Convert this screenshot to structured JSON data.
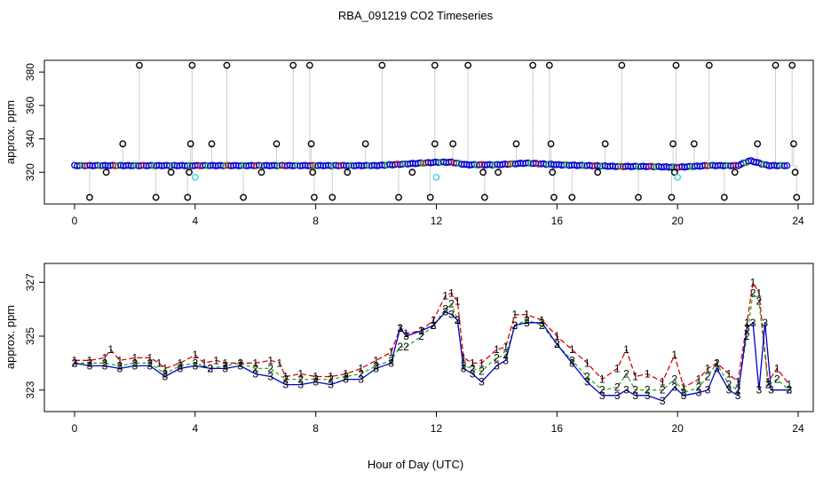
{
  "figure": {
    "title": "RBA_091219  CO2 Timeseries",
    "xlabel": "Hour of Day (UTC)"
  },
  "colors": {
    "axis": "#000000",
    "drop_line": "#a0a0a0",
    "outlier": "#000000",
    "flagged": "#40d0e0",
    "series_1": "#e00000",
    "series_2": "#20b020",
    "series_3": "#0000d0"
  },
  "chart_data": [
    {
      "type": "scatter",
      "panel": "top",
      "ylabel": "approx. ppm",
      "xlim": [
        -1,
        24.5
      ],
      "ylim": [
        301,
        387
      ],
      "x_ticks": [
        0,
        4,
        8,
        12,
        16,
        20,
        24
      ],
      "y_ticks": [
        320,
        340,
        360,
        380
      ],
      "baseline": [
        [
          0,
          324
        ],
        [
          1,
          324
        ],
        [
          2,
          324
        ],
        [
          3,
          324
        ],
        [
          4,
          324
        ],
        [
          5,
          324
        ],
        [
          6,
          324
        ],
        [
          7,
          324
        ],
        [
          8,
          324
        ],
        [
          9,
          324
        ],
        [
          10,
          324
        ],
        [
          11,
          325
        ],
        [
          12,
          326
        ],
        [
          12.5,
          326
        ],
        [
          13,
          324.5
        ],
        [
          14,
          324.5
        ],
        [
          15,
          325.5
        ],
        [
          16,
          324.5
        ],
        [
          17,
          324
        ],
        [
          18,
          323.5
        ],
        [
          19,
          323.5
        ],
        [
          20,
          323
        ],
        [
          21,
          324
        ],
        [
          22,
          324
        ],
        [
          22.4,
          327
        ],
        [
          23,
          324
        ],
        [
          23.7,
          324
        ]
      ],
      "outliers_high": [
        [
          2.15,
          384
        ],
        [
          3.9,
          384
        ],
        [
          5.05,
          384
        ],
        [
          7.25,
          384
        ],
        [
          7.8,
          384
        ],
        [
          10.2,
          384
        ],
        [
          11.95,
          384
        ],
        [
          13.05,
          384
        ],
        [
          15.2,
          384
        ],
        [
          15.75,
          384
        ],
        [
          18.15,
          384
        ],
        [
          19.95,
          384
        ],
        [
          21.05,
          384
        ],
        [
          23.25,
          384
        ],
        [
          23.8,
          384
        ]
      ],
      "outliers_mid": [
        [
          1.6,
          337
        ],
        [
          3.85,
          337
        ],
        [
          4.55,
          337
        ],
        [
          6.7,
          337
        ],
        [
          7.85,
          337
        ],
        [
          9.65,
          337
        ],
        [
          11.95,
          337
        ],
        [
          12.55,
          337
        ],
        [
          14.65,
          337
        ],
        [
          15.8,
          337
        ],
        [
          17.6,
          337
        ],
        [
          19.85,
          337
        ],
        [
          20.55,
          337
        ],
        [
          22.65,
          337
        ],
        [
          23.85,
          337
        ]
      ],
      "outliers_lowmid": [
        [
          1.05,
          320
        ],
        [
          3.2,
          320
        ],
        [
          3.8,
          320
        ],
        [
          6.2,
          320
        ],
        [
          7.9,
          320
        ],
        [
          9.05,
          320
        ],
        [
          11.2,
          320
        ],
        [
          13.55,
          320
        ],
        [
          14.05,
          320
        ],
        [
          15.85,
          320
        ],
        [
          17.35,
          320
        ],
        [
          19.9,
          320
        ],
        [
          21.9,
          320
        ],
        [
          23.9,
          320
        ]
      ],
      "outliers_low": [
        [
          0.5,
          305
        ],
        [
          2.7,
          305
        ],
        [
          3.75,
          305
        ],
        [
          5.6,
          305
        ],
        [
          7.95,
          305
        ],
        [
          8.55,
          305
        ],
        [
          10.75,
          305
        ],
        [
          11.8,
          305
        ],
        [
          13.6,
          305
        ],
        [
          15.9,
          305
        ],
        [
          16.5,
          305
        ],
        [
          18.7,
          305
        ],
        [
          19.8,
          305
        ],
        [
          21.55,
          305
        ],
        [
          23.95,
          305
        ]
      ],
      "flagged_points": [
        [
          4,
          317
        ],
        [
          12,
          317
        ],
        [
          20,
          317
        ]
      ]
    },
    {
      "type": "line",
      "panel": "bottom",
      "ylabel": "approx. ppm",
      "xlim": [
        -1,
        24.5
      ],
      "ylim": [
        322.2,
        327.7
      ],
      "x_ticks": [
        0,
        4,
        8,
        12,
        16,
        20,
        24
      ],
      "y_ticks": [
        323,
        325,
        327
      ],
      "series": [
        {
          "name": "1",
          "points": [
            [
              0,
              324.1
            ],
            [
              0.5,
              324.1
            ],
            [
              1,
              324.2
            ],
            [
              1.2,
              324.5
            ],
            [
              1.5,
              324.1
            ],
            [
              2,
              324.2
            ],
            [
              2.5,
              324.2
            ],
            [
              2.8,
              324.0
            ],
            [
              3,
              323.8
            ],
            [
              3.5,
              324.0
            ],
            [
              4,
              324.3
            ],
            [
              4.3,
              324.0
            ],
            [
              4.7,
              324.1
            ],
            [
              5,
              324.0
            ],
            [
              5.5,
              324.0
            ],
            [
              6,
              324.0
            ],
            [
              6.5,
              324.1
            ],
            [
              6.8,
              324.0
            ],
            [
              7,
              323.5
            ],
            [
              7.5,
              323.6
            ],
            [
              8,
              323.5
            ],
            [
              8.5,
              323.5
            ],
            [
              9,
              323.6
            ],
            [
              9.5,
              323.8
            ],
            [
              10,
              324.1
            ],
            [
              10.5,
              324.4
            ],
            [
              10.8,
              325.3
            ],
            [
              11,
              325.1
            ],
            [
              11.5,
              325.2
            ],
            [
              11.9,
              325.6
            ],
            [
              12.3,
              326.5
            ],
            [
              12.5,
              326.6
            ],
            [
              12.7,
              326.3
            ],
            [
              12.9,
              324.2
            ],
            [
              13.2,
              324.0
            ],
            [
              13.5,
              324.0
            ],
            [
              14,
              324.5
            ],
            [
              14.3,
              324.6
            ],
            [
              14.6,
              325.8
            ],
            [
              15,
              325.8
            ],
            [
              15.5,
              325.6
            ],
            [
              16,
              325.0
            ],
            [
              16.5,
              324.5
            ],
            [
              17,
              324.0
            ],
            [
              17.5,
              323.4
            ],
            [
              18,
              323.8
            ],
            [
              18.3,
              324.5
            ],
            [
              18.6,
              323.5
            ],
            [
              19,
              323.6
            ],
            [
              19.5,
              323.3
            ],
            [
              19.9,
              324.3
            ],
            [
              20.2,
              323.1
            ],
            [
              20.7,
              323.4
            ],
            [
              21,
              323.8
            ],
            [
              21.3,
              324.0
            ],
            [
              21.7,
              323.6
            ],
            [
              22,
              323.3
            ],
            [
              22.3,
              325.5
            ],
            [
              22.5,
              327.0
            ],
            [
              22.7,
              326.6
            ],
            [
              23,
              323.3
            ],
            [
              23.3,
              323.8
            ],
            [
              23.7,
              323.2
            ]
          ]
        },
        {
          "name": "2",
          "points": [
            [
              0,
              324.0
            ],
            [
              0.5,
              324.0
            ],
            [
              1,
              324.0
            ],
            [
              1.5,
              323.9
            ],
            [
              2,
              324.0
            ],
            [
              2.5,
              324.0
            ],
            [
              3,
              323.6
            ],
            [
              3.5,
              323.9
            ],
            [
              4,
              324.0
            ],
            [
              4.5,
              323.8
            ],
            [
              5,
              323.9
            ],
            [
              5.5,
              324.0
            ],
            [
              6,
              323.8
            ],
            [
              6.5,
              323.8
            ],
            [
              7,
              323.4
            ],
            [
              7.5,
              323.4
            ],
            [
              8,
              323.4
            ],
            [
              8.5,
              323.4
            ],
            [
              9,
              323.5
            ],
            [
              9.5,
              323.6
            ],
            [
              10,
              323.9
            ],
            [
              10.5,
              324.1
            ],
            [
              10.8,
              324.6
            ],
            [
              11,
              324.6
            ],
            [
              11.5,
              325.0
            ],
            [
              11.9,
              325.4
            ],
            [
              12.3,
              326.0
            ],
            [
              12.5,
              326.2
            ],
            [
              12.7,
              325.6
            ],
            [
              12.9,
              323.9
            ],
            [
              13.2,
              323.8
            ],
            [
              13.5,
              323.7
            ],
            [
              14,
              324.2
            ],
            [
              14.3,
              324.3
            ],
            [
              14.6,
              325.4
            ],
            [
              15,
              325.6
            ],
            [
              15.5,
              325.4
            ],
            [
              16,
              324.7
            ],
            [
              16.5,
              324.1
            ],
            [
              17,
              323.5
            ],
            [
              17.5,
              323.0
            ],
            [
              18,
              323.1
            ],
            [
              18.3,
              323.6
            ],
            [
              18.6,
              323.0
            ],
            [
              19,
              323.0
            ],
            [
              19.5,
              323.0
            ],
            [
              19.9,
              323.4
            ],
            [
              20.2,
              322.9
            ],
            [
              20.7,
              323.1
            ],
            [
              21,
              323.5
            ],
            [
              21.3,
              324.0
            ],
            [
              21.7,
              323.2
            ],
            [
              22,
              323.0
            ],
            [
              22.3,
              325.0
            ],
            [
              22.5,
              326.6
            ],
            [
              22.7,
              326.3
            ],
            [
              23,
              323.2
            ],
            [
              23.3,
              323.4
            ],
            [
              23.7,
              323.0
            ]
          ]
        },
        {
          "name": "3",
          "points": [
            [
              0,
              324.0
            ],
            [
              0.5,
              323.9
            ],
            [
              1,
              323.9
            ],
            [
              1.5,
              323.8
            ],
            [
              2,
              323.9
            ],
            [
              2.5,
              323.9
            ],
            [
              3,
              323.5
            ],
            [
              3.5,
              323.8
            ],
            [
              4,
              323.9
            ],
            [
              4.5,
              323.8
            ],
            [
              5,
              323.8
            ],
            [
              5.5,
              323.9
            ],
            [
              6,
              323.6
            ],
            [
              6.5,
              323.5
            ],
            [
              7,
              323.2
            ],
            [
              7.5,
              323.2
            ],
            [
              8,
              323.3
            ],
            [
              8.5,
              323.2
            ],
            [
              9,
              323.4
            ],
            [
              9.5,
              323.4
            ],
            [
              10,
              323.8
            ],
            [
              10.5,
              324.0
            ],
            [
              10.8,
              325.3
            ],
            [
              11,
              325.0
            ],
            [
              11.5,
              325.2
            ],
            [
              11.9,
              325.4
            ],
            [
              12.3,
              325.9
            ],
            [
              12.5,
              325.8
            ],
            [
              12.7,
              325.6
            ],
            [
              12.9,
              323.8
            ],
            [
              13.2,
              323.6
            ],
            [
              13.5,
              323.3
            ],
            [
              14,
              323.9
            ],
            [
              14.3,
              324.1
            ],
            [
              14.6,
              325.4
            ],
            [
              15,
              325.5
            ],
            [
              15.5,
              325.5
            ],
            [
              16,
              324.7
            ],
            [
              16.5,
              324.0
            ],
            [
              17,
              323.3
            ],
            [
              17.5,
              322.8
            ],
            [
              18,
              322.8
            ],
            [
              18.3,
              323.0
            ],
            [
              18.6,
              322.8
            ],
            [
              19,
              322.8
            ],
            [
              19.5,
              322.6
            ],
            [
              19.9,
              323.1
            ],
            [
              20.2,
              322.8
            ],
            [
              20.7,
              322.9
            ],
            [
              21,
              323.0
            ],
            [
              21.3,
              323.8
            ],
            [
              21.7,
              323.0
            ],
            [
              22,
              322.8
            ],
            [
              22.3,
              325.3
            ],
            [
              22.5,
              325.5
            ],
            [
              22.7,
              323.0
            ],
            [
              22.9,
              325.5
            ],
            [
              23.1,
              323.0
            ],
            [
              23.7,
              323.0
            ]
          ]
        }
      ]
    }
  ]
}
